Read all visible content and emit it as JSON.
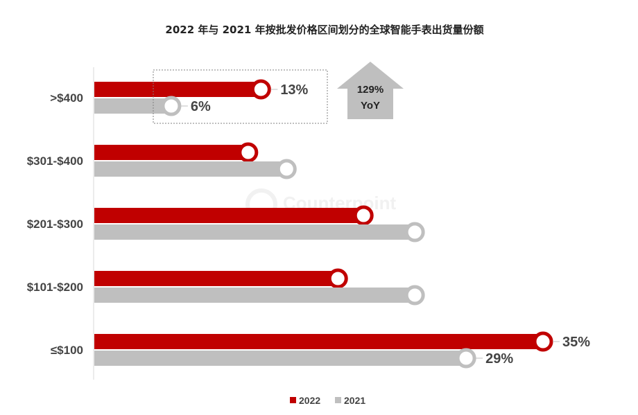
{
  "chart_data": {
    "type": "bar",
    "orientation": "horizontal",
    "title": "2022 年与 2021 年按批发价格区间划分的全球智能手表出货量份额",
    "categories": [
      ">$400",
      "$301-$400",
      "$201-$300",
      "$101-$200",
      "≤$100"
    ],
    "series": [
      {
        "name": "2022",
        "color": "#c00000",
        "values": [
          13,
          12,
          21,
          19,
          35
        ]
      },
      {
        "name": "2021",
        "color": "#bfbfbf",
        "values": [
          6,
          15,
          25,
          25,
          29
        ]
      }
    ],
    "data_labels": {
      "2022": [
        "13%",
        "",
        "",
        "",
        "35%"
      ],
      "2021": [
        "6%",
        "",
        "",
        "",
        "29%"
      ]
    },
    "xlim": [
      0,
      37
    ],
    "grid": false,
    "legend": {
      "position": "bottom",
      "items": [
        "2022",
        "2021"
      ]
    },
    "callout": {
      "line1": "129%",
      "line2": "YoY",
      "fill": "#bfbfbf"
    },
    "watermark": "Counterpoint"
  }
}
